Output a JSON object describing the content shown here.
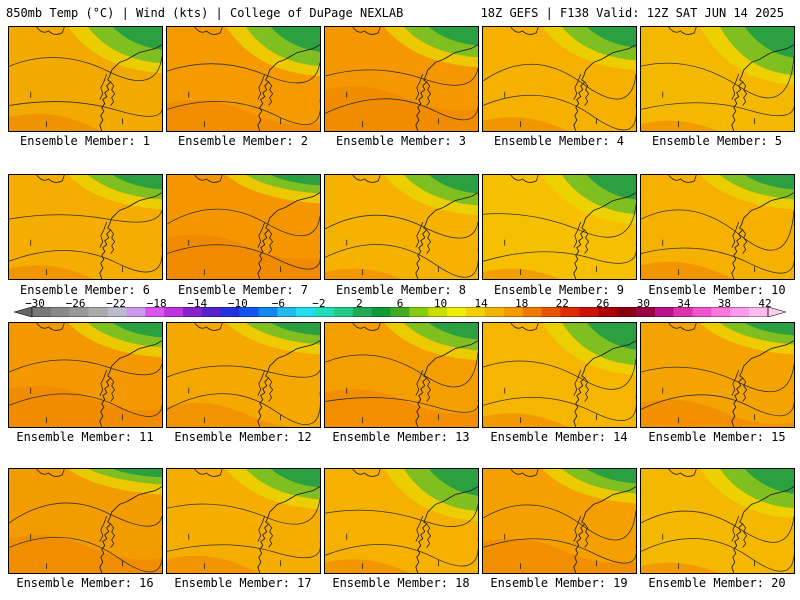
{
  "header": {
    "left": "850mb Temp (°C) | Wind (kts) | College of DuPage NEXLAB",
    "right": "18Z GEFS | F138 Valid: 12Z SAT JUN 14 2025"
  },
  "panels": [
    {
      "label": "Ensemble Member: 1",
      "base": "#f2a900",
      "warm": 0.2,
      "cool": 0.55
    },
    {
      "label": "Ensemble Member: 2",
      "base": "#f59a00",
      "warm": 0.4,
      "cool": 0.6
    },
    {
      "label": "Ensemble Member: 3",
      "base": "#f49700",
      "warm": 0.6,
      "cool": 0.45
    },
    {
      "label": "Ensemble Member: 4",
      "base": "#f5b000",
      "warm": 0.15,
      "cool": 0.5
    },
    {
      "label": "Ensemble Member: 5",
      "base": "#f5b800",
      "warm": 0.1,
      "cool": 0.75
    },
    {
      "label": "Ensemble Member: 6",
      "base": "#f4ad00",
      "warm": 0.15,
      "cool": 0.35
    },
    {
      "label": "Ensemble Member: 7",
      "base": "#f59600",
      "warm": 0.6,
      "cool": 0.25
    },
    {
      "label": "Ensemble Member: 8",
      "base": "#f5b200",
      "warm": 0.1,
      "cool": 0.45
    },
    {
      "label": "Ensemble Member: 9",
      "base": "#f6c000",
      "warm": 0.1,
      "cool": 0.6
    },
    {
      "label": "Ensemble Member: 10",
      "base": "#f5b000",
      "warm": 0.2,
      "cool": 0.35
    },
    {
      "label": "Ensemble Member: 11",
      "base": "#f39800",
      "warm": 0.55,
      "cool": 0.35
    },
    {
      "label": "Ensemble Member: 12",
      "base": "#f5a800",
      "warm": 0.3,
      "cool": 0.3
    },
    {
      "label": "Ensemble Member: 13",
      "base": "#f59e00",
      "warm": 0.5,
      "cool": 0.4
    },
    {
      "label": "Ensemble Member: 14",
      "base": "#f5b500",
      "warm": 0.15,
      "cool": 0.65
    },
    {
      "label": "Ensemble Member: 15",
      "base": "#f5a300",
      "warm": 0.35,
      "cool": 0.3
    },
    {
      "label": "Ensemble Member: 16",
      "base": "#f39c00",
      "warm": 0.5,
      "cool": 0.2
    },
    {
      "label": "Ensemble Member: 17",
      "base": "#f5ae00",
      "warm": 0.2,
      "cool": 0.45
    },
    {
      "label": "Ensemble Member: 18",
      "base": "#f5b000",
      "warm": 0.15,
      "cool": 0.65
    },
    {
      "label": "Ensemble Member: 19",
      "base": "#f5a000",
      "warm": 0.45,
      "cool": 0.35
    },
    {
      "label": "Ensemble Member: 20",
      "base": "#f5b800",
      "warm": 0.1,
      "cool": 0.6
    }
  ],
  "colorbar": {
    "ticks": [
      "−30",
      "−26",
      "−22",
      "−18",
      "−14",
      "−10",
      "−6",
      "−2",
      "2",
      "6",
      "10",
      "14",
      "18",
      "22",
      "26",
      "30",
      "34",
      "38",
      "42"
    ],
    "colors": [
      "#777777",
      "#888888",
      "#999999",
      "#aaaaaa",
      "#bbbbcc",
      "#cc99ee",
      "#dd55ee",
      "#bb33dd",
      "#8822cc",
      "#5522cc",
      "#2233dd",
      "#1155ee",
      "#1188ee",
      "#22bbee",
      "#22ddee",
      "#22ddbb",
      "#22cc88",
      "#22aa55",
      "#119933",
      "#44aa22",
      "#88cc11",
      "#ccdd00",
      "#eeee00",
      "#f5d000",
      "#f5b400",
      "#f59a00",
      "#ef7a00",
      "#e85500",
      "#e02a00",
      "#cc1100",
      "#aa0000",
      "#880011",
      "#990044",
      "#bb1188",
      "#dd33aa",
      "#ee55cc",
      "#ff77dd",
      "#ff99ee",
      "#ffbbee"
    ]
  },
  "colors": {
    "cool_green": "#2aa040",
    "mid_green": "#7fc020",
    "warm_orange": "#ee8200",
    "contour": "#333333"
  }
}
